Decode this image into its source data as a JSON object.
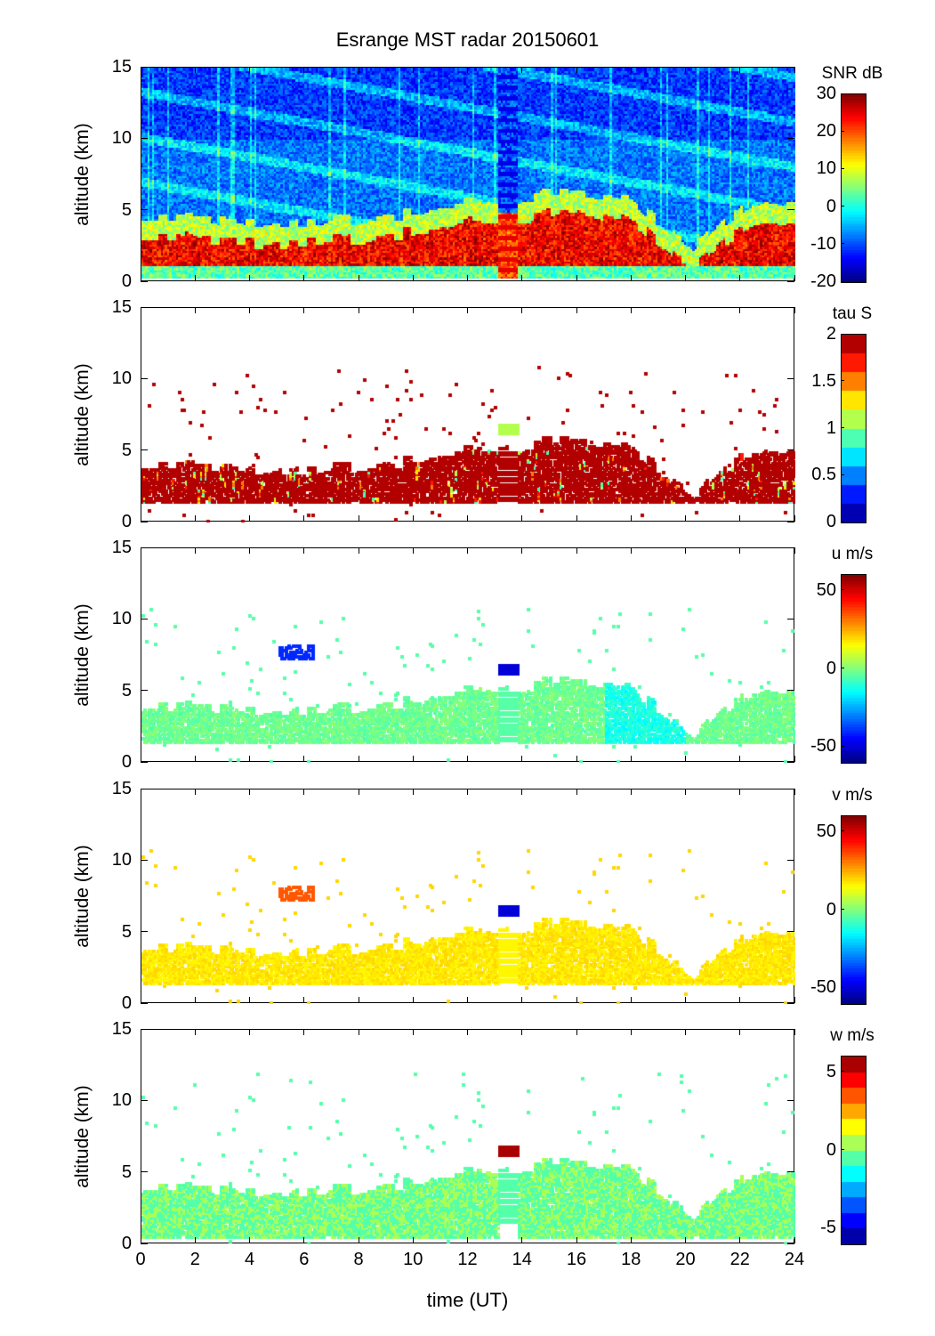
{
  "chart_data": {
    "type": "heatmap",
    "title": "Esrange MST radar 20150601",
    "xlabel": "time (UT)",
    "xlim": [
      0,
      24
    ],
    "xticks": [
      0,
      2,
      4,
      6,
      8,
      10,
      12,
      14,
      16,
      18,
      20,
      22,
      24
    ],
    "ylabel": "altitude (km)",
    "ylim": [
      0,
      15
    ],
    "yticks": [
      0,
      5,
      10,
      15
    ],
    "colormap": "jet",
    "data_gap_hours": [
      13.1,
      13.8
    ],
    "panels": [
      {
        "name": "snr",
        "colorbar_label": "SNR dB",
        "clim": [
          -20,
          30
        ],
        "cticks": [
          -20,
          -10,
          0,
          10,
          20,
          30
        ],
        "levels": 64,
        "description_values": {
          "boundary_layer_km": [
            1.2,
            4.5
          ],
          "boundary_layer_snr_db": 20,
          "background_snr_db": -10
        }
      },
      {
        "name": "tau",
        "colorbar_label": "tau S",
        "clim": [
          0,
          2
        ],
        "cticks": [
          0,
          0.5,
          1,
          1.5,
          2
        ],
        "levels": 10,
        "description_values": {
          "boundary_layer_tau_s": 2
        }
      },
      {
        "name": "u",
        "colorbar_label": "u m/s",
        "clim": [
          -60,
          60
        ],
        "cticks": [
          -50,
          0,
          50
        ],
        "levels": 64,
        "description_values": {
          "typical_u_ms": -8
        }
      },
      {
        "name": "v",
        "colorbar_label": "v m/s",
        "clim": [
          -60,
          60
        ],
        "cticks": [
          -50,
          0,
          50
        ],
        "levels": 64,
        "description_values": {
          "typical_v_ms": 15
        }
      },
      {
        "name": "w",
        "colorbar_label": "w m/s",
        "clim": [
          -6,
          6
        ],
        "cticks": [
          -5,
          0,
          5
        ],
        "levels": 12,
        "description_values": {
          "typical_w_ms": -0.5
        }
      }
    ]
  }
}
